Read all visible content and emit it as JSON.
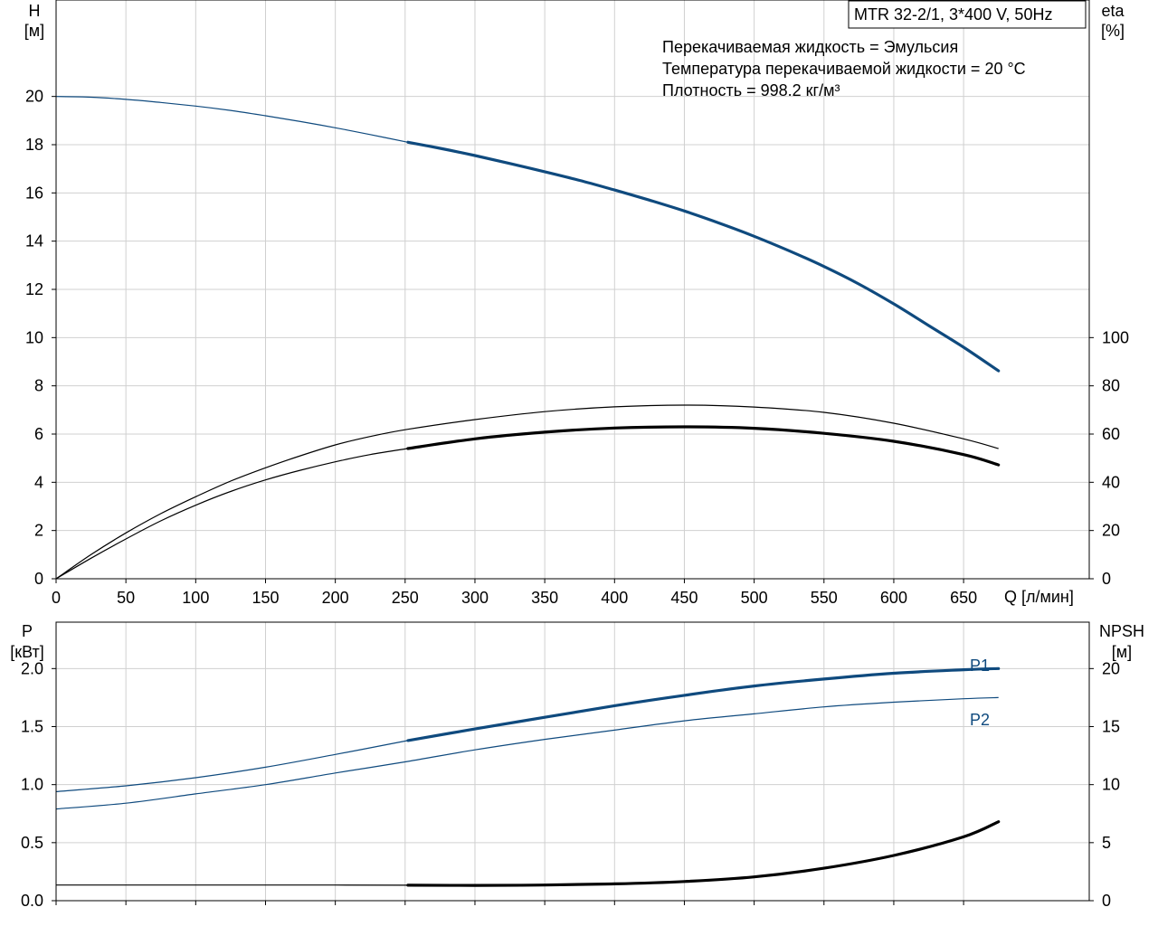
{
  "chart_data": [
    {
      "type": "line",
      "title_box": "MTR 32-2/1, 3*400 V, 50Hz",
      "info_lines": [
        "Перекачиваемая жидкость = Эмульсия",
        "Температура перекачиваемой жидкости = 20 °C",
        "Плотность = 998.2 кг/м³"
      ],
      "y_left_label": [
        "H",
        "[м]"
      ],
      "y_right_label": [
        "eta",
        "[%]"
      ],
      "x_label": "Q [л/мин]",
      "x_range": [
        0,
        740
      ],
      "x_ticks": [
        "0",
        "50",
        "100",
        "150",
        "200",
        "250",
        "300",
        "350",
        "400",
        "450",
        "500",
        "550",
        "600",
        "650"
      ],
      "y_left_range": [
        0,
        24
      ],
      "y_left_ticks": [
        "0",
        "2",
        "4",
        "6",
        "8",
        "10",
        "12",
        "14",
        "16",
        "18",
        "20"
      ],
      "y_right_range": [
        0,
        240
      ],
      "y_right_ticks": [
        "0",
        "20",
        "40",
        "60",
        "80",
        "100"
      ],
      "grid": true,
      "series": [
        {
          "axis": "left",
          "color": "#0f4a7e",
          "bold_from": 252,
          "x": [
            0,
            25,
            50,
            75,
            100,
            125,
            150,
            175,
            200,
            225,
            252,
            275,
            300,
            325,
            350,
            375,
            400,
            425,
            450,
            475,
            500,
            525,
            550,
            575,
            600,
            625,
            650,
            675
          ],
          "y": [
            20.0,
            19.97,
            19.88,
            19.75,
            19.6,
            19.42,
            19.2,
            18.96,
            18.7,
            18.42,
            18.1,
            17.85,
            17.55,
            17.22,
            16.88,
            16.52,
            16.12,
            15.7,
            15.25,
            14.75,
            14.2,
            13.6,
            12.95,
            12.22,
            11.4,
            10.5,
            9.6,
            8.62
          ]
        },
        {
          "axis": "right",
          "color": "#000000",
          "bold_from": 675,
          "x": [
            0,
            25,
            50,
            75,
            100,
            125,
            150,
            175,
            200,
            225,
            252,
            300,
            350,
            400,
            450,
            500,
            550,
            600,
            650,
            675
          ],
          "y": [
            0,
            10,
            19,
            27,
            34,
            40.5,
            46,
            51,
            55.5,
            59,
            62,
            66,
            69.3,
            71.3,
            72.0,
            71.2,
            69,
            64.5,
            58,
            54
          ]
        },
        {
          "axis": "right",
          "color": "#000000",
          "bold_from": 252,
          "x": [
            0,
            25,
            50,
            75,
            100,
            125,
            150,
            175,
            200,
            225,
            252,
            300,
            350,
            400,
            450,
            500,
            550,
            600,
            650,
            675
          ],
          "y": [
            0,
            8.5,
            16.5,
            24,
            30.5,
            36.2,
            41,
            45,
            48.5,
            51.5,
            54,
            58,
            60.8,
            62.5,
            63.0,
            62.4,
            60.3,
            57,
            51.5,
            47.2
          ]
        }
      ]
    },
    {
      "type": "line",
      "y_left_label": [
        "P",
        "[кВт]"
      ],
      "y_right_label": [
        "NPSH",
        "[м]"
      ],
      "x_range": [
        0,
        740
      ],
      "x_ticks_count": 14,
      "y_left_range": [
        0,
        2.4
      ],
      "y_left_ticks": [
        "0.0",
        "0.5",
        "1.0",
        "1.5",
        "2.0"
      ],
      "y_right_range": [
        0,
        24
      ],
      "y_right_ticks": [
        "0",
        "5",
        "10",
        "15",
        "20"
      ],
      "grid": true,
      "series": [
        {
          "name": "P1",
          "axis": "left",
          "color": "#0f4a7e",
          "bold_from": 252,
          "x": [
            0,
            50,
            100,
            150,
            200,
            252,
            300,
            350,
            400,
            450,
            500,
            550,
            600,
            650,
            675
          ],
          "y": [
            0.94,
            0.99,
            1.06,
            1.15,
            1.26,
            1.38,
            1.48,
            1.58,
            1.68,
            1.77,
            1.85,
            1.91,
            1.96,
            1.99,
            2.0
          ]
        },
        {
          "name": "P2",
          "axis": "left",
          "color": "#0f4a7e",
          "bold_from": 675,
          "x": [
            0,
            50,
            100,
            150,
            200,
            252,
            300,
            350,
            400,
            450,
            500,
            550,
            600,
            650,
            675
          ],
          "y": [
            0.79,
            0.84,
            0.92,
            1.0,
            1.1,
            1.2,
            1.3,
            1.39,
            1.47,
            1.55,
            1.61,
            1.67,
            1.71,
            1.74,
            1.75
          ]
        },
        {
          "axis": "right",
          "color": "#000000",
          "bold_from": 252,
          "x": [
            0,
            100,
            200,
            252,
            300,
            350,
            400,
            450,
            500,
            550,
            600,
            650,
            675
          ],
          "y": [
            1.35,
            1.35,
            1.35,
            1.33,
            1.32,
            1.35,
            1.45,
            1.65,
            2.05,
            2.8,
            3.9,
            5.5,
            6.8
          ]
        }
      ]
    }
  ]
}
